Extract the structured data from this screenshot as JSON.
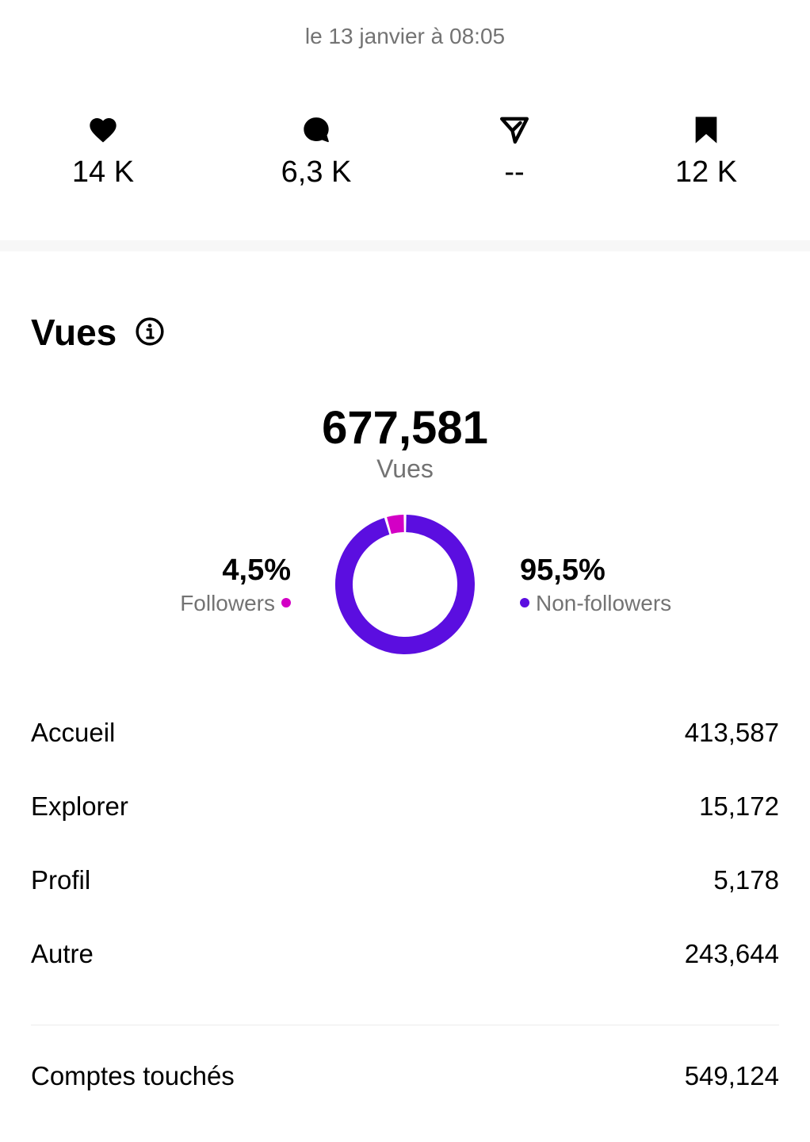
{
  "header": {
    "timestamp": "le 13 janvier à 08:05"
  },
  "stats": [
    {
      "icon": "heart-icon",
      "value": "14 K"
    },
    {
      "icon": "comment-icon",
      "value": "6,3 K"
    },
    {
      "icon": "share-icon",
      "value": "--"
    },
    {
      "icon": "bookmark-icon",
      "value": "12 K"
    }
  ],
  "views": {
    "title": "Vues",
    "total": "677,581",
    "total_label": "Vues",
    "followers": {
      "percent": "4,5%",
      "label": "Followers",
      "fraction": 0.045,
      "color": "#d300c5"
    },
    "non_followers": {
      "percent": "95,5%",
      "label": "Non-followers",
      "fraction": 0.955,
      "color": "#5b0ee0"
    }
  },
  "sources": [
    {
      "label": "Accueil",
      "value": "413,587"
    },
    {
      "label": "Explorer",
      "value": "15,172"
    },
    {
      "label": "Profil",
      "value": "5,178"
    },
    {
      "label": "Autre",
      "value": "243,644"
    }
  ],
  "reach": {
    "label": "Comptes touchés",
    "value": "549,124"
  }
}
